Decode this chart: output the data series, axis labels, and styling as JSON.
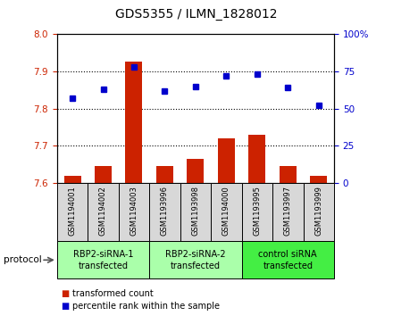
{
  "title": "GDS5355 / ILMN_1828012",
  "samples": [
    "GSM1194001",
    "GSM1194002",
    "GSM1194003",
    "GSM1193996",
    "GSM1193998",
    "GSM1194000",
    "GSM1193995",
    "GSM1193997",
    "GSM1193999"
  ],
  "bar_values": [
    7.62,
    7.645,
    7.925,
    7.645,
    7.665,
    7.72,
    7.73,
    7.645,
    7.62
  ],
  "bar_base": 7.6,
  "blue_values": [
    57,
    63,
    78,
    62,
    65,
    72,
    73,
    64,
    52
  ],
  "ylim_left": [
    7.6,
    8.0
  ],
  "ylim_right": [
    0,
    100
  ],
  "yticks_left": [
    7.6,
    7.7,
    7.8,
    7.9,
    8.0
  ],
  "yticks_right": [
    0,
    25,
    50,
    75,
    100
  ],
  "ytick_labels_right": [
    "0",
    "25",
    "50",
    "75",
    "100%"
  ],
  "bar_color": "#cc2200",
  "blue_color": "#0000cc",
  "bg_color": "#ffffff",
  "groups": [
    {
      "label": "RBP2-siRNA-1\ntransfected",
      "start": 0,
      "end": 3,
      "color": "#aaffaa"
    },
    {
      "label": "RBP2-siRNA-2\ntransfected",
      "start": 3,
      "end": 6,
      "color": "#aaffaa"
    },
    {
      "label": "control siRNA\ntransfected",
      "start": 6,
      "end": 9,
      "color": "#44ee44"
    }
  ],
  "protocol_label": "protocol",
  "legend_bar_label": "transformed count",
  "legend_blue_label": "percentile rank within the sample",
  "title_fontsize": 10,
  "tick_fontsize": 7.5,
  "sample_fontsize": 6,
  "group_fontsize": 7,
  "legend_fontsize": 7
}
